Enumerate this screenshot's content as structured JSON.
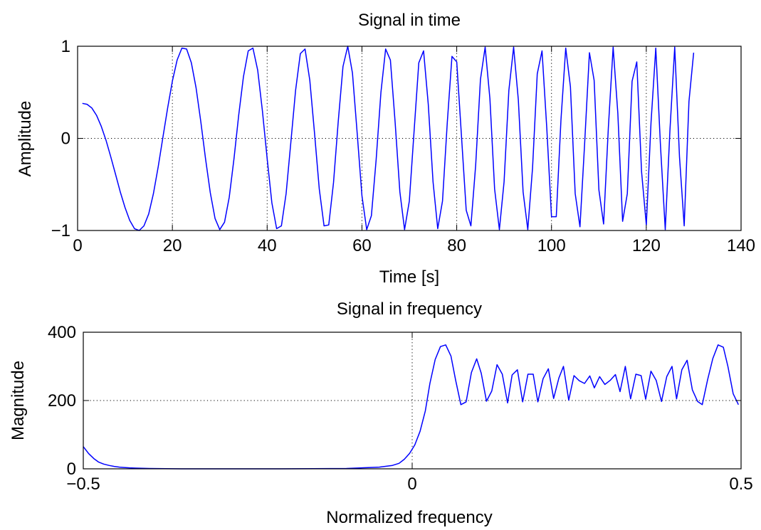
{
  "chart_data": [
    {
      "type": "line",
      "title": "Signal in time",
      "xlabel": "Time [s]",
      "ylabel": "Amplitude",
      "xlim": [
        0,
        140
      ],
      "ylim": [
        -1,
        1
      ],
      "x_ticks": [
        "0",
        "20",
        "40",
        "60",
        "80",
        "100",
        "120",
        "140"
      ],
      "y_ticks": [
        "−1",
        "0",
        "1"
      ],
      "grid": true,
      "line_color": "#0000ff",
      "series": [
        {
          "x_start": 1,
          "x_step": 1,
          "values": [
            0.38,
            0.37,
            0.33,
            0.25,
            0.13,
            -0.02,
            -0.2,
            -0.39,
            -0.58,
            -0.75,
            -0.89,
            -0.98,
            -1.0,
            -0.95,
            -0.82,
            -0.6,
            -0.31,
            0.01,
            0.33,
            0.62,
            0.85,
            0.98,
            0.97,
            0.82,
            0.55,
            0.18,
            -0.22,
            -0.59,
            -0.87,
            -0.99,
            -0.91,
            -0.64,
            -0.22,
            0.25,
            0.67,
            0.95,
            0.98,
            0.74,
            0.3,
            -0.22,
            -0.7,
            -0.98,
            -0.95,
            -0.6,
            -0.04,
            0.52,
            0.92,
            0.97,
            0.63,
            0.05,
            -0.55,
            -0.95,
            -0.94,
            -0.48,
            0.18,
            0.78,
            1.0,
            0.71,
            0.05,
            -0.62,
            -0.99,
            -0.84,
            -0.23,
            0.5,
            0.97,
            0.85,
            0.18,
            -0.58,
            -0.99,
            -0.68,
            0.08,
            0.82,
            0.95,
            0.37,
            -0.47,
            -0.98,
            -0.68,
            0.17,
            0.89,
            0.83,
            0.03,
            -0.78,
            -0.95,
            -0.29,
            0.64,
            0.99,
            0.43,
            -0.55,
            -0.99,
            -0.47,
            0.52,
            0.99,
            0.42,
            -0.58,
            -0.99,
            -0.32,
            0.7,
            0.95,
            0.11,
            -0.85,
            -0.85,
            0.2,
            0.98,
            0.56,
            -0.6,
            -0.96,
            -0.05,
            0.93,
            0.63,
            -0.56,
            -0.93,
            0.12,
            0.99,
            0.27,
            -0.9,
            -0.6,
            0.62,
            0.83,
            -0.36,
            -0.94,
            0.17,
            0.98,
            -0.08,
            -0.99,
            0.09,
            0.99,
            -0.2,
            -0.95,
            0.4,
            0.93
          ]
        }
      ]
    },
    {
      "type": "line",
      "title": "Signal in frequency",
      "xlabel": "Normalized frequency",
      "ylabel": "Magnitude",
      "xlim": [
        -0.5,
        0.5
      ],
      "ylim": [
        0,
        400
      ],
      "x_ticks": [
        "−0.5",
        "0",
        "0.5"
      ],
      "y_ticks": [
        "0",
        "200",
        "400"
      ],
      "grid": true,
      "line_color": "#0000ff",
      "series": [
        {
          "x": [
            -0.5,
            -0.492,
            -0.484,
            -0.477,
            -0.469,
            -0.461,
            -0.453,
            -0.445,
            -0.438,
            -0.43,
            -0.42,
            -0.4,
            -0.35,
            -0.3,
            -0.2,
            -0.1,
            -0.05,
            -0.03,
            -0.02,
            -0.012,
            -0.004,
            0.004,
            0.012,
            0.02,
            0.027,
            0.035,
            0.043,
            0.051,
            0.059,
            0.066,
            0.074,
            0.082,
            0.09,
            0.098,
            0.105,
            0.113,
            0.121,
            0.129,
            0.137,
            0.145,
            0.152,
            0.16,
            0.168,
            0.176,
            0.184,
            0.191,
            0.199,
            0.207,
            0.215,
            0.223,
            0.23,
            0.238,
            0.246,
            0.254,
            0.262,
            0.27,
            0.277,
            0.285,
            0.293,
            0.301,
            0.309,
            0.316,
            0.324,
            0.332,
            0.34,
            0.348,
            0.355,
            0.363,
            0.371,
            0.379,
            0.387,
            0.395,
            0.402,
            0.41,
            0.418,
            0.426,
            0.434,
            0.441,
            0.449,
            0.457,
            0.465,
            0.473,
            0.48,
            0.488,
            0.496
          ],
          "values": [
            65,
            45,
            30,
            20,
            14,
            10,
            7,
            5,
            4,
            3,
            2,
            1,
            0,
            0,
            0,
            1,
            5,
            10,
            16,
            28,
            45,
            70,
            110,
            170,
            250,
            320,
            358,
            363,
            330,
            260,
            188,
            196,
            282,
            322,
            280,
            198,
            228,
            305,
            277,
            193,
            275,
            290,
            196,
            277,
            277,
            196,
            264,
            293,
            206,
            266,
            300,
            201,
            273,
            258,
            250,
            272,
            237,
            270,
            247,
            259,
            276,
            226,
            300,
            205,
            277,
            273,
            204,
            286,
            259,
            197,
            270,
            300,
            205,
            290,
            318,
            231,
            197,
            188,
            260,
            323,
            363,
            356,
            300,
            220,
            188
          ]
        }
      ]
    }
  ]
}
